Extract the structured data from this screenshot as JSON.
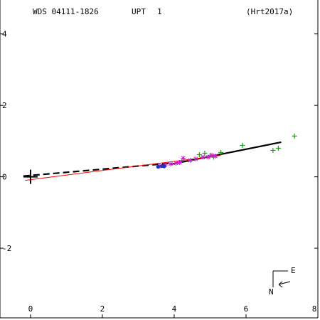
{
  "header": {
    "wds_id": "WDS 04111-1826",
    "disc_code": "UPT",
    "pair": "1",
    "reference": "(Hrt2017a)"
  },
  "compass": {
    "east_label": "E",
    "north_label": "N"
  },
  "chart_data": {
    "type": "scatter",
    "title": "",
    "xlabel": "",
    "ylabel": "",
    "xlim": [
      -0.85,
      8.0
    ],
    "ylim": [
      -3.95,
      4.95
    ],
    "x_ticks": [
      0,
      2,
      4,
      6,
      8
    ],
    "y_ticks": [
      -2,
      0,
      2,
      4
    ],
    "x_tick_labels": [
      "0",
      "2",
      "4",
      "6",
      "8"
    ],
    "y_tick_labels": [
      "-2",
      "0",
      "2",
      "4"
    ],
    "grid": false,
    "primary_star": {
      "x": 0,
      "y": 0
    },
    "series": [
      {
        "marker": "plus",
        "color": "#1a9e1a",
        "points": [
          [
            4.7,
            0.62
          ],
          [
            4.85,
            0.66
          ],
          [
            5.0,
            0.6
          ],
          [
            5.1,
            0.55
          ],
          [
            5.3,
            0.68
          ],
          [
            5.9,
            0.88
          ],
          [
            6.75,
            0.74
          ],
          [
            6.9,
            0.8
          ],
          [
            7.35,
            1.14
          ]
        ]
      },
      {
        "marker": "asterisk",
        "color": "#d020d0",
        "points": [
          [
            3.6,
            0.3
          ],
          [
            3.75,
            0.33
          ],
          [
            3.9,
            0.36
          ],
          [
            4.05,
            0.38
          ],
          [
            4.15,
            0.4
          ],
          [
            4.25,
            0.52
          ],
          [
            4.45,
            0.46
          ],
          [
            4.6,
            0.5
          ],
          [
            4.8,
            0.55
          ],
          [
            4.95,
            0.55
          ],
          [
            5.05,
            0.6
          ],
          [
            5.15,
            0.58
          ]
        ]
      },
      {
        "marker": "filled-circle",
        "color": "#2030c0",
        "points": [
          [
            3.55,
            0.28
          ],
          [
            3.65,
            0.3
          ],
          [
            3.72,
            0.29
          ]
        ]
      }
    ],
    "lines": [
      {
        "style": "dashed",
        "color": "#000000",
        "points": [
          [
            -0.2,
            0.02
          ],
          [
            3.9,
            0.38
          ]
        ]
      },
      {
        "style": "solid-thick",
        "color": "#000000",
        "points": [
          [
            3.9,
            0.35
          ],
          [
            6.98,
            0.97
          ]
        ]
      },
      {
        "style": "solid-thin",
        "color": "#ff0000",
        "points": [
          [
            -0.15,
            -0.1
          ],
          [
            5.3,
            0.6
          ]
        ]
      }
    ]
  }
}
